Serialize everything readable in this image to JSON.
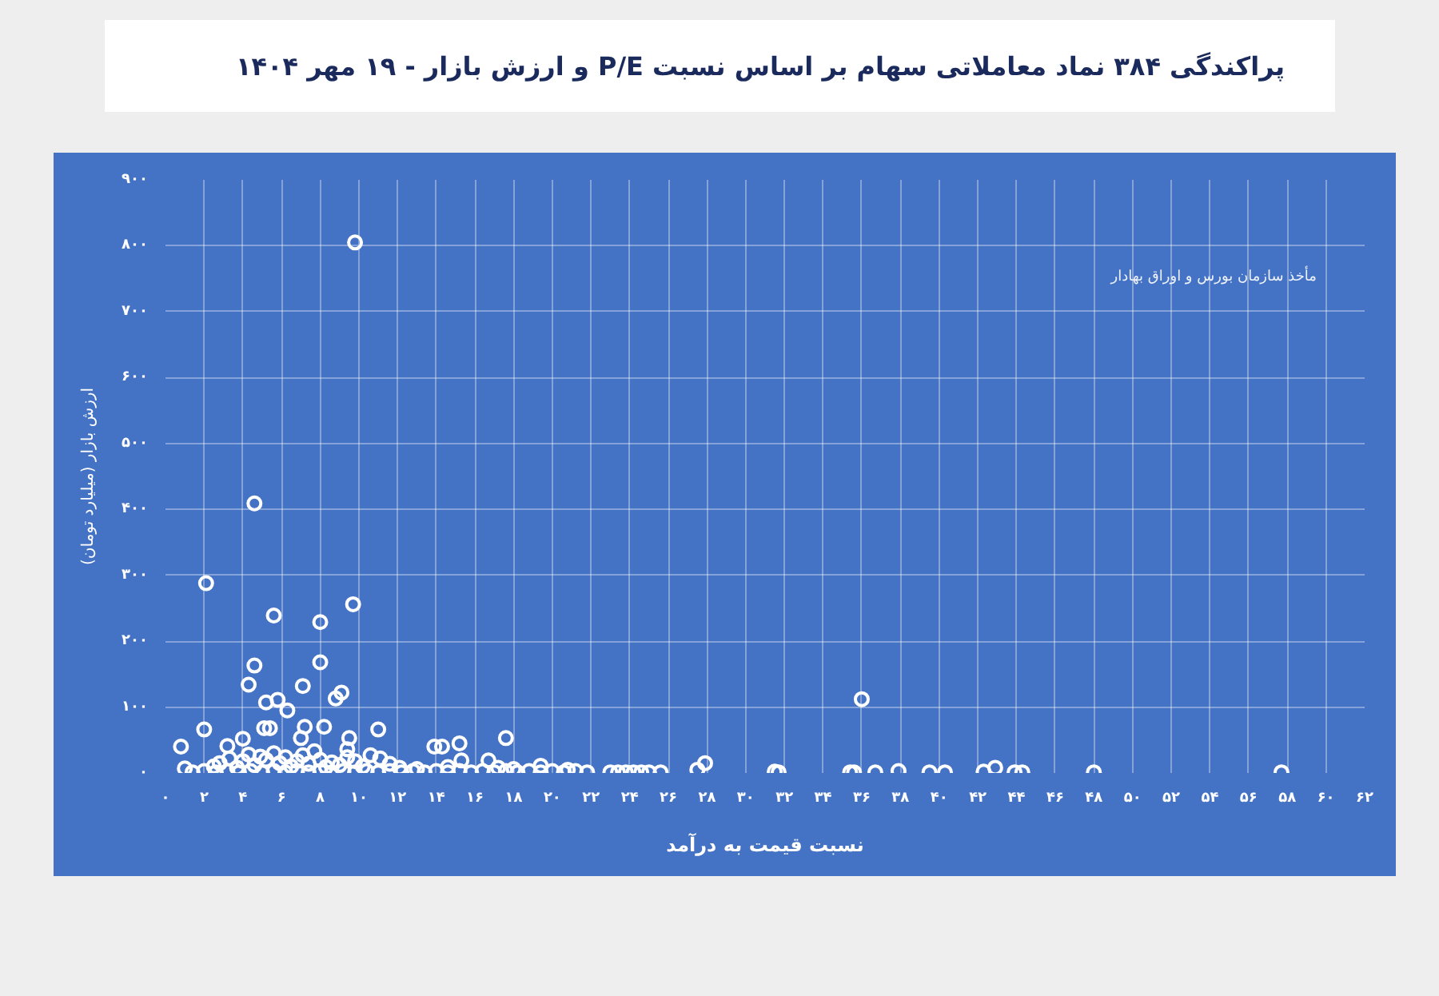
{
  "chart_data": {
    "type": "scatter",
    "title": "پراکندگی ۳۸۴ نماد معاملاتی سهام بر اساس نسبت P/E و ارزش بازار - ۱۹ مهر ۱۴۰۴",
    "xlabel": "نسبت قیمت به درآمد",
    "ylabel": "ارزش بازار (میلیارد تومان)",
    "annotations": [
      "مأخذ سازمان بورس و اوراق بهادار"
    ],
    "xlim": [
      0,
      62
    ],
    "ylim": [
      0,
      900
    ],
    "xticks": [
      {
        "value": 0,
        "label": "۰"
      },
      {
        "value": 2,
        "label": "۲"
      },
      {
        "value": 4,
        "label": "۴"
      },
      {
        "value": 6,
        "label": "۶"
      },
      {
        "value": 8,
        "label": "۸"
      },
      {
        "value": 10,
        "label": "۱۰"
      },
      {
        "value": 12,
        "label": "۱۲"
      },
      {
        "value": 14,
        "label": "۱۴"
      },
      {
        "value": 16,
        "label": "۱۶"
      },
      {
        "value": 18,
        "label": "۱۸"
      },
      {
        "value": 20,
        "label": "۲۰"
      },
      {
        "value": 22,
        "label": "۲۲"
      },
      {
        "value": 24,
        "label": "۲۴"
      },
      {
        "value": 26,
        "label": "۲۶"
      },
      {
        "value": 28,
        "label": "۲۸"
      },
      {
        "value": 30,
        "label": "۳۰"
      },
      {
        "value": 32,
        "label": "۳۲"
      },
      {
        "value": 34,
        "label": "۳۴"
      },
      {
        "value": 36,
        "label": "۳۶"
      },
      {
        "value": 38,
        "label": "۳۸"
      },
      {
        "value": 40,
        "label": "۴۰"
      },
      {
        "value": 42,
        "label": "۴۲"
      },
      {
        "value": 44,
        "label": "۴۴"
      },
      {
        "value": 46,
        "label": "۴۶"
      },
      {
        "value": 48,
        "label": "۴۸"
      },
      {
        "value": 50,
        "label": "۵۰"
      },
      {
        "value": 52,
        "label": "۵۲"
      },
      {
        "value": 54,
        "label": "۵۴"
      },
      {
        "value": 56,
        "label": "۵۶"
      },
      {
        "value": 58,
        "label": "۵۸"
      },
      {
        "value": 60,
        "label": "۶۰"
      },
      {
        "value": 62,
        "label": "۶۲"
      }
    ],
    "yticks": [
      {
        "value": 0,
        "label": "۰"
      },
      {
        "value": 100,
        "label": "۱۰۰"
      },
      {
        "value": 200,
        "label": "۲۰۰"
      },
      {
        "value": 300,
        "label": "۳۰۰"
      },
      {
        "value": 400,
        "label": "۴۰۰"
      },
      {
        "value": 500,
        "label": "۵۰۰"
      },
      {
        "value": 600,
        "label": "۶۰۰"
      },
      {
        "value": 700,
        "label": "۷۰۰"
      },
      {
        "value": 800,
        "label": "۸۰۰"
      },
      {
        "value": 900,
        "label": "۹۰۰"
      }
    ],
    "grid": true,
    "marker": "circle",
    "color": "#ffffff",
    "x": [
      9.8,
      4.6,
      2.1,
      9.7,
      5.6,
      8.0,
      8.0,
      4.6,
      4.3,
      7.1,
      9.1,
      8.8,
      5.2,
      5.8,
      6.3,
      2.0,
      5.1,
      5.4,
      7.2,
      8.2,
      11.0,
      0.8,
      4.0,
      3.2,
      7.0,
      9.5,
      9.4,
      13.9,
      14.3,
      15.2,
      17.6,
      1.0,
      36.0,
      2.5,
      2.8,
      3.3,
      3.7,
      4.0,
      4.3,
      4.6,
      4.9,
      5.2,
      5.6,
      5.9,
      6.2,
      6.5,
      6.8,
      7.1,
      7.4,
      7.7,
      8.0,
      8.3,
      8.6,
      9.0,
      9.4,
      9.8,
      10.2,
      10.6,
      11.1,
      11.6,
      12.1,
      13.0,
      14.6,
      15.3,
      16.7,
      17.2,
      18.0,
      19.4,
      20.8,
      1.4,
      2.0,
      2.6,
      3.2,
      3.8,
      4.4,
      5.0,
      5.6,
      6.2,
      6.8,
      7.4,
      8.0,
      8.6,
      9.2,
      9.8,
      10.4,
      11.0,
      11.6,
      12.2,
      12.8,
      13.4,
      14.0,
      14.6,
      15.2,
      15.8,
      16.4,
      17.0,
      17.6,
      18.2,
      18.8,
      19.4,
      20.0,
      20.6,
      21.2,
      21.8,
      23.0,
      23.4,
      23.8,
      24.2,
      24.6,
      25.0,
      25.6,
      27.5,
      27.9,
      31.5,
      31.7,
      35.4,
      35.6,
      36.7,
      37.9,
      39.5,
      40.3,
      42.3,
      42.9,
      43.9,
      44.3,
      48.0,
      57.7
    ],
    "values": [
      805,
      409,
      288,
      256,
      239,
      229,
      168,
      163,
      134,
      132,
      122,
      113,
      107,
      111,
      95,
      66,
      68,
      68,
      70,
      70,
      66,
      40,
      52,
      41,
      53,
      53,
      36,
      40,
      40,
      45,
      53,
      7,
      112,
      10,
      15,
      22,
      8,
      18,
      28,
      12,
      25,
      20,
      30,
      15,
      24,
      10,
      18,
      27,
      14,
      33,
      20,
      9,
      16,
      12,
      24,
      18,
      10,
      27,
      22,
      14,
      8,
      6,
      9,
      19,
      19,
      8,
      6,
      11,
      5,
      1,
      3,
      1,
      3,
      1,
      3,
      1,
      3,
      1,
      3,
      1,
      3,
      1,
      3,
      1,
      3,
      1,
      3,
      1,
      3,
      1,
      3,
      1,
      3,
      1,
      3,
      1,
      3,
      1,
      3,
      1,
      3,
      1,
      3,
      1,
      1,
      1,
      1,
      1,
      1,
      1,
      1,
      5,
      15,
      2,
      1,
      1,
      1,
      1,
      3,
      1,
      1,
      2,
      8,
      1,
      1,
      1,
      1
    ]
  }
}
